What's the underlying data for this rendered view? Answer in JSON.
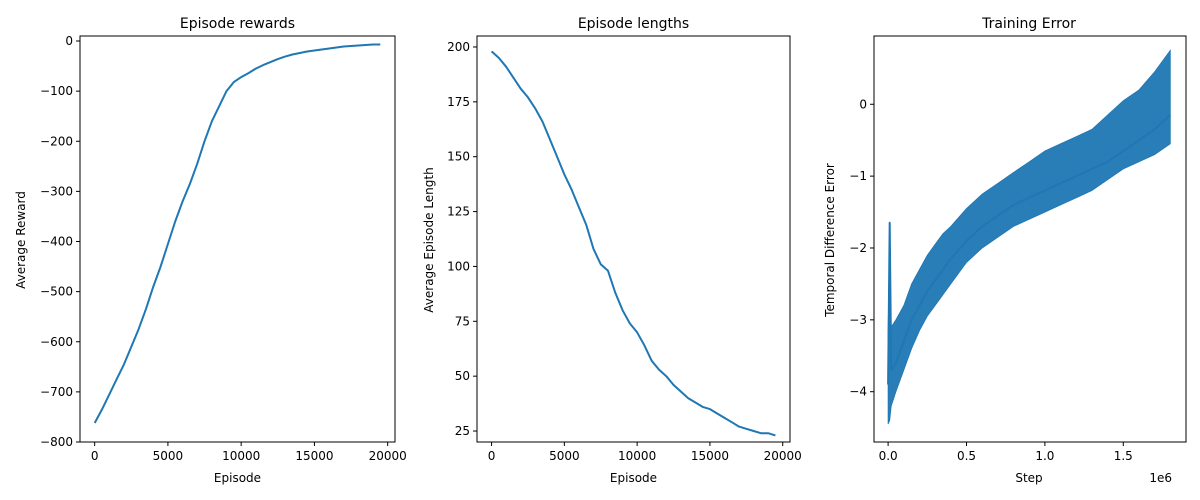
{
  "chart_data": [
    {
      "type": "line",
      "title": "Episode rewards",
      "xlabel": "Episode",
      "ylabel": "Average Reward",
      "xlim": [
        -1000,
        20500
      ],
      "ylim": [
        -800,
        10
      ],
      "xticks": [
        0,
        5000,
        10000,
        15000,
        20000
      ],
      "xtick_labels": [
        "0",
        "5000",
        "10000",
        "15000",
        "20000"
      ],
      "yticks": [
        0,
        -100,
        -200,
        -300,
        -400,
        -500,
        -600,
        -700,
        -800
      ],
      "ytick_labels": [
        "0",
        "−100",
        "−200",
        "−300",
        "−400",
        "−500",
        "−600",
        "−700",
        "−800"
      ],
      "grid": false,
      "color": "#1f77b4",
      "x_scale": "linear",
      "series": [
        {
          "x": [
            0,
            500,
            1000,
            1500,
            2000,
            2500,
            3000,
            3500,
            4000,
            4500,
            5000,
            5500,
            6000,
            6500,
            7000,
            7500,
            8000,
            8500,
            9000,
            9500,
            10000,
            10500,
            11000,
            11500,
            12000,
            12500,
            13000,
            13500,
            14000,
            14500,
            15000,
            15500,
            16000,
            16500,
            17000,
            17500,
            18000,
            18500,
            19000,
            19500
          ],
          "y": [
            -762,
            -735,
            -705,
            -675,
            -645,
            -610,
            -575,
            -535,
            -490,
            -450,
            -405,
            -360,
            -320,
            -285,
            -245,
            -200,
            -160,
            -130,
            -100,
            -82,
            -72,
            -64,
            -55,
            -48,
            -42,
            -36,
            -31,
            -27,
            -24,
            -21,
            -19,
            -17,
            -15,
            -13,
            -11,
            -10,
            -9,
            -8,
            -7,
            -7
          ]
        }
      ]
    },
    {
      "type": "line",
      "title": "Episode lengths",
      "xlabel": "Episode",
      "ylabel": "Average Episode Length",
      "xlim": [
        -1000,
        20500
      ],
      "ylim": [
        20,
        205
      ],
      "xticks": [
        0,
        5000,
        10000,
        15000,
        20000
      ],
      "xtick_labels": [
        "0",
        "5000",
        "10000",
        "15000",
        "20000"
      ],
      "yticks": [
        25,
        50,
        75,
        100,
        125,
        150,
        175,
        200
      ],
      "ytick_labels": [
        "25",
        "50",
        "75",
        "100",
        "125",
        "150",
        "175",
        "200"
      ],
      "grid": false,
      "color": "#1f77b4",
      "x_scale": "linear",
      "series": [
        {
          "x": [
            0,
            500,
            1000,
            1500,
            2000,
            2500,
            3000,
            3500,
            4000,
            4500,
            5000,
            5500,
            6000,
            6500,
            7000,
            7500,
            8000,
            8500,
            9000,
            9500,
            10000,
            10500,
            11000,
            11500,
            12000,
            12500,
            13000,
            13500,
            14000,
            14500,
            15000,
            15500,
            16000,
            16500,
            17000,
            17500,
            18000,
            18500,
            19000,
            19500
          ],
          "y": [
            198,
            195,
            191,
            186,
            181,
            177,
            172,
            166,
            158,
            150,
            142,
            135,
            127,
            119,
            108,
            101,
            98,
            88,
            80,
            74,
            70,
            64,
            57,
            53,
            50,
            46,
            43,
            40,
            38,
            36,
            35,
            33,
            31,
            29,
            27,
            26,
            25,
            24,
            24,
            23
          ]
        }
      ]
    },
    {
      "type": "line",
      "title": "Training Error",
      "xlabel": "Step",
      "ylabel": "Temporal Difference Error",
      "x_offset_label": "1e6",
      "xlim": [
        -0.09,
        1.9
      ],
      "ylim": [
        -4.7,
        0.95
      ],
      "xticks": [
        0,
        0.5,
        1.0,
        1.5
      ],
      "xtick_labels": [
        "0.0",
        "0.5",
        "1.0",
        "1.5"
      ],
      "yticks": [
        0,
        -1,
        -2,
        -3,
        -4
      ],
      "ytick_labels": [
        "0",
        "−1",
        "−2",
        "−3",
        "−4"
      ],
      "grid": false,
      "color": "#1f77b4",
      "x_scale": "linear",
      "series": [
        {
          "x": [
            0,
            0.01,
            0.02,
            0.05,
            0.1,
            0.15,
            0.2,
            0.25,
            0.3,
            0.35,
            0.4,
            0.5,
            0.6,
            0.7,
            0.8,
            0.9,
            1.0,
            1.1,
            1.2,
            1.3,
            1.4,
            1.5,
            1.6,
            1.7,
            1.8
          ],
          "y": [
            -3.9,
            -1.65,
            -3.7,
            -3.6,
            -3.3,
            -3.0,
            -2.8,
            -2.6,
            -2.45,
            -2.3,
            -2.15,
            -1.9,
            -1.7,
            -1.55,
            -1.4,
            -1.3,
            -1.2,
            -1.1,
            -1.0,
            -0.9,
            -0.8,
            -0.65,
            -0.5,
            -0.35,
            -0.15
          ],
          "band_low": [
            -4.45,
            -4.4,
            -4.2,
            -4.0,
            -3.7,
            -3.4,
            -3.15,
            -2.95,
            -2.8,
            -2.65,
            -2.5,
            -2.2,
            -2.0,
            -1.85,
            -1.7,
            -1.6,
            -1.5,
            -1.4,
            -1.3,
            -1.2,
            -1.05,
            -0.9,
            -0.8,
            -0.7,
            -0.55
          ],
          "band_high": [
            -3.2,
            -1.65,
            -3.1,
            -3.0,
            -2.8,
            -2.5,
            -2.3,
            -2.1,
            -1.95,
            -1.8,
            -1.7,
            -1.45,
            -1.25,
            -1.1,
            -0.95,
            -0.8,
            -0.65,
            -0.55,
            -0.45,
            -0.35,
            -0.15,
            0.05,
            0.2,
            0.45,
            0.75
          ]
        }
      ]
    }
  ]
}
